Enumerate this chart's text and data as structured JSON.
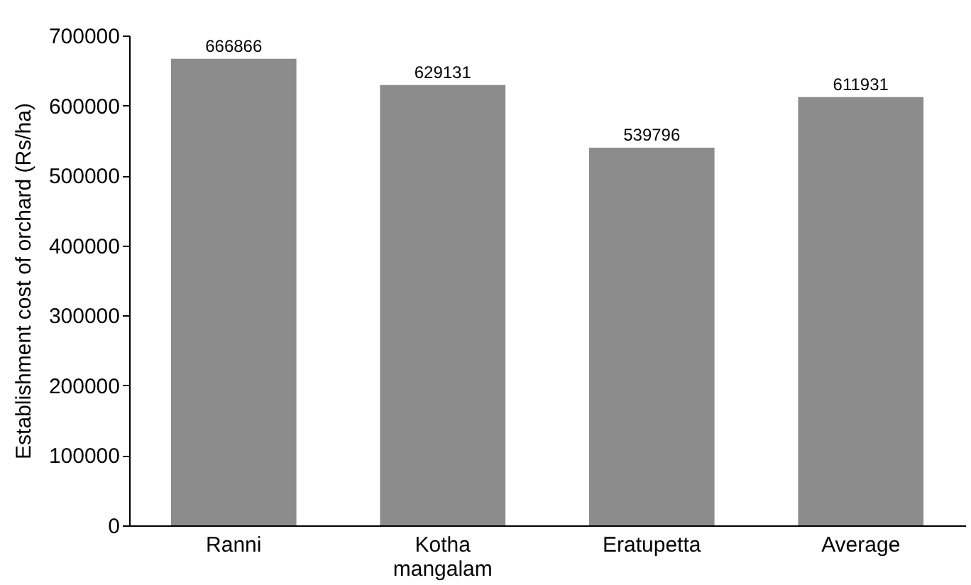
{
  "chart_data": {
    "type": "bar",
    "ylabel": "Establishment cost of orchard (Rs/ha)",
    "categories": [
      "Ranni",
      "Kotha mangalam",
      "Eratupetta",
      "Average"
    ],
    "values": [
      666866,
      629131,
      539796,
      611931
    ],
    "color": "#8c8c8c",
    "ylim": [
      0,
      700000
    ],
    "yticks": [
      0,
      100000,
      200000,
      300000,
      400000,
      500000,
      600000,
      700000
    ],
    "grid": false,
    "data_labels": true
  }
}
